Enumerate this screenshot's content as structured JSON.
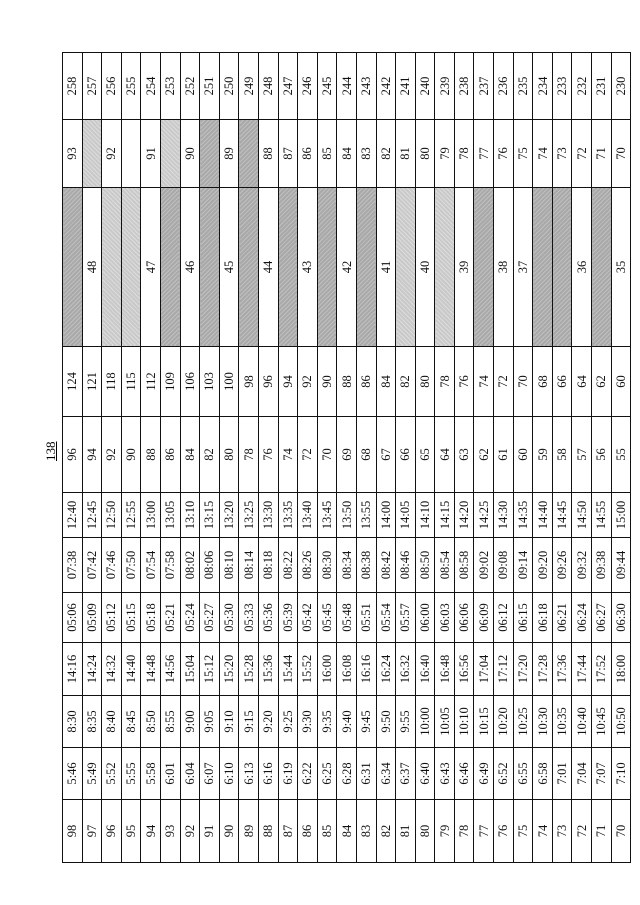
{
  "page_number": "138",
  "table": {
    "rows": [
      {
        "cells": [
          "98",
          "5:46",
          "8:30",
          "14:16",
          "05:06",
          "07:38",
          "12:40",
          "96",
          "124"
        ],
        "c10": {
          "value": "",
          "shade": "dark"
        },
        "c11": {
          "value": "93",
          "shade": ""
        },
        "c12": "258"
      },
      {
        "cells": [
          "97",
          "5:49",
          "8:35",
          "14:24",
          "05:09",
          "07:42",
          "12:45",
          "94",
          "121"
        ],
        "c10": {
          "value": "48",
          "shade": ""
        },
        "c11": {
          "value": "",
          "shade": "light"
        },
        "c12": "257"
      },
      {
        "cells": [
          "96",
          "5:52",
          "8:40",
          "14:32",
          "05:12",
          "07:46",
          "12:50",
          "92",
          "118"
        ],
        "c10": {
          "value": "",
          "shade": "light"
        },
        "c11": {
          "value": "92",
          "shade": ""
        },
        "c12": "256"
      },
      {
        "cells": [
          "95",
          "5:55",
          "8:45",
          "14:40",
          "05:15",
          "07:50",
          "12:55",
          "90",
          "115"
        ],
        "c10": {
          "value": "",
          "shade": "light"
        },
        "c11": {
          "value": "",
          "shade": ""
        },
        "c12": "255"
      },
      {
        "cells": [
          "94",
          "5:58",
          "8:50",
          "14:48",
          "05:18",
          "07:54",
          "13:00",
          "88",
          "112"
        ],
        "c10": {
          "value": "47",
          "shade": ""
        },
        "c11": {
          "value": "91",
          "shade": ""
        },
        "c12": "254"
      },
      {
        "cells": [
          "93",
          "6:01",
          "8:55",
          "14:56",
          "05:21",
          "07:58",
          "13:05",
          "86",
          "109"
        ],
        "c10": {
          "value": "",
          "shade": "dark"
        },
        "c11": {
          "value": "",
          "shade": "light"
        },
        "c12": "253"
      },
      {
        "cells": [
          "92",
          "6:04",
          "9:00",
          "15:04",
          "05:24",
          "08:02",
          "13:10",
          "84",
          "106"
        ],
        "c10": {
          "value": "46",
          "shade": ""
        },
        "c11": {
          "value": "90",
          "shade": ""
        },
        "c12": "252"
      },
      {
        "cells": [
          "91",
          "6:07",
          "9:05",
          "15:12",
          "05:27",
          "08:06",
          "13:15",
          "82",
          "103"
        ],
        "c10": {
          "value": "",
          "shade": "dark"
        },
        "c11": {
          "value": "",
          "shade": "dark"
        },
        "c12": "251"
      },
      {
        "cells": [
          "90",
          "6:10",
          "9:10",
          "15:20",
          "05:30",
          "08:10",
          "13:20",
          "80",
          "100"
        ],
        "c10": {
          "value": "45",
          "shade": ""
        },
        "c11": {
          "value": "89",
          "shade": ""
        },
        "c12": "250"
      },
      {
        "cells": [
          "89",
          "6:13",
          "9:15",
          "15:28",
          "05:33",
          "08:14",
          "13:25",
          "78",
          "98"
        ],
        "c10": {
          "value": "",
          "shade": "dark"
        },
        "c11": {
          "value": "",
          "shade": "dark"
        },
        "c12": "249"
      },
      {
        "cells": [
          "88",
          "6:16",
          "9:20",
          "15:36",
          "05:36",
          "08:18",
          "13:30",
          "76",
          "96"
        ],
        "c10": {
          "value": "44",
          "shade": ""
        },
        "c11": {
          "value": "88",
          "shade": ""
        },
        "c12": "248"
      },
      {
        "cells": [
          "87",
          "6:19",
          "9:25",
          "15:44",
          "05:39",
          "08:22",
          "13:35",
          "74",
          "94"
        ],
        "c10": {
          "value": "",
          "shade": "dark"
        },
        "c11": {
          "value": "87",
          "shade": ""
        },
        "c12": "247"
      },
      {
        "cells": [
          "86",
          "6:22",
          "9:30",
          "15:52",
          "05:42",
          "08:26",
          "13:40",
          "72",
          "92"
        ],
        "c10": {
          "value": "43",
          "shade": ""
        },
        "c11": {
          "value": "86",
          "shade": ""
        },
        "c12": "246"
      },
      {
        "cells": [
          "85",
          "6:25",
          "9:35",
          "16:00",
          "05:45",
          "08:30",
          "13:45",
          "70",
          "90"
        ],
        "c10": {
          "value": "",
          "shade": "dark"
        },
        "c11": {
          "value": "85",
          "shade": ""
        },
        "c12": "245"
      },
      {
        "cells": [
          "84",
          "6:28",
          "9:40",
          "16:08",
          "05:48",
          "08:34",
          "13:50",
          "69",
          "88"
        ],
        "c10": {
          "value": "42",
          "shade": ""
        },
        "c11": {
          "value": "84",
          "shade": ""
        },
        "c12": "244"
      },
      {
        "cells": [
          "83",
          "6:31",
          "9:45",
          "16:16",
          "05:51",
          "08:38",
          "13:55",
          "68",
          "86"
        ],
        "c10": {
          "value": "",
          "shade": "dark"
        },
        "c11": {
          "value": "83",
          "shade": ""
        },
        "c12": "243"
      },
      {
        "cells": [
          "82",
          "6:34",
          "9:50",
          "16:24",
          "05:54",
          "08:42",
          "14:00",
          "67",
          "84"
        ],
        "c10": {
          "value": "41",
          "shade": ""
        },
        "c11": {
          "value": "82",
          "shade": ""
        },
        "c12": "242"
      },
      {
        "cells": [
          "81",
          "6:37",
          "9:55",
          "16:32",
          "05:57",
          "08:46",
          "14:05",
          "66",
          "82"
        ],
        "c10": {
          "value": "",
          "shade": "light"
        },
        "c11": {
          "value": "81",
          "shade": ""
        },
        "c12": "241"
      },
      {
        "cells": [
          "80",
          "6:40",
          "10:00",
          "16:40",
          "06:00",
          "08:50",
          "14:10",
          "65",
          "80"
        ],
        "c10": {
          "value": "40",
          "shade": ""
        },
        "c11": {
          "value": "80",
          "shade": ""
        },
        "c12": "240"
      },
      {
        "cells": [
          "79",
          "6:43",
          "10:05",
          "16:48",
          "06:03",
          "08:54",
          "14:15",
          "64",
          "78"
        ],
        "c10": {
          "value": "",
          "shade": "light"
        },
        "c11": {
          "value": "79",
          "shade": ""
        },
        "c12": "239"
      },
      {
        "cells": [
          "78",
          "6:46",
          "10:10",
          "16:56",
          "06:06",
          "08:58",
          "14:20",
          "63",
          "76"
        ],
        "c10": {
          "value": "39",
          "shade": ""
        },
        "c11": {
          "value": "78",
          "shade": ""
        },
        "c12": "238"
      },
      {
        "cells": [
          "77",
          "6:49",
          "10:15",
          "17:04",
          "06:09",
          "09:02",
          "14:25",
          "62",
          "74"
        ],
        "c10": {
          "value": "",
          "shade": "dark"
        },
        "c11": {
          "value": "77",
          "shade": ""
        },
        "c12": "237"
      },
      {
        "cells": [
          "76",
          "6:52",
          "10:20",
          "17:12",
          "06:12",
          "09:08",
          "14:30",
          "61",
          "72"
        ],
        "c10": {
          "value": "38",
          "shade": ""
        },
        "c11": {
          "value": "76",
          "shade": ""
        },
        "c12": "236"
      },
      {
        "cells": [
          "75",
          "6:55",
          "10:25",
          "17:20",
          "06:15",
          "09:14",
          "14:35",
          "60",
          "70"
        ],
        "c10": {
          "value": "37",
          "shade": ""
        },
        "c11": {
          "value": "75",
          "shade": ""
        },
        "c12": "235"
      },
      {
        "cells": [
          "74",
          "6:58",
          "10:30",
          "17:28",
          "06:18",
          "09:20",
          "14:40",
          "59",
          "68"
        ],
        "c10": {
          "value": "",
          "shade": "dark"
        },
        "c11": {
          "value": "74",
          "shade": ""
        },
        "c12": "234"
      },
      {
        "cells": [
          "73",
          "7:01",
          "10:35",
          "17:36",
          "06:21",
          "09:26",
          "14:45",
          "58",
          "66"
        ],
        "c10": {
          "value": "",
          "shade": "dark"
        },
        "c11": {
          "value": "73",
          "shade": ""
        },
        "c12": "233"
      },
      {
        "cells": [
          "72",
          "7:04",
          "10:40",
          "17:44",
          "06:24",
          "09:32",
          "14:50",
          "57",
          "64"
        ],
        "c10": {
          "value": "36",
          "shade": ""
        },
        "c11": {
          "value": "72",
          "shade": ""
        },
        "c12": "232"
      },
      {
        "cells": [
          "71",
          "7:07",
          "10:45",
          "17:52",
          "06:27",
          "09:38",
          "14:55",
          "56",
          "62"
        ],
        "c10": {
          "value": "",
          "shade": "dark"
        },
        "c11": {
          "value": "71",
          "shade": ""
        },
        "c12": "231"
      },
      {
        "cells": [
          "70",
          "7:10",
          "10:50",
          "18:00",
          "06:30",
          "09:44",
          "15:00",
          "55",
          "60"
        ],
        "c10": {
          "value": "35",
          "shade": ""
        },
        "c11": {
          "value": "70",
          "shade": ""
        },
        "c12": "230"
      }
    ]
  }
}
